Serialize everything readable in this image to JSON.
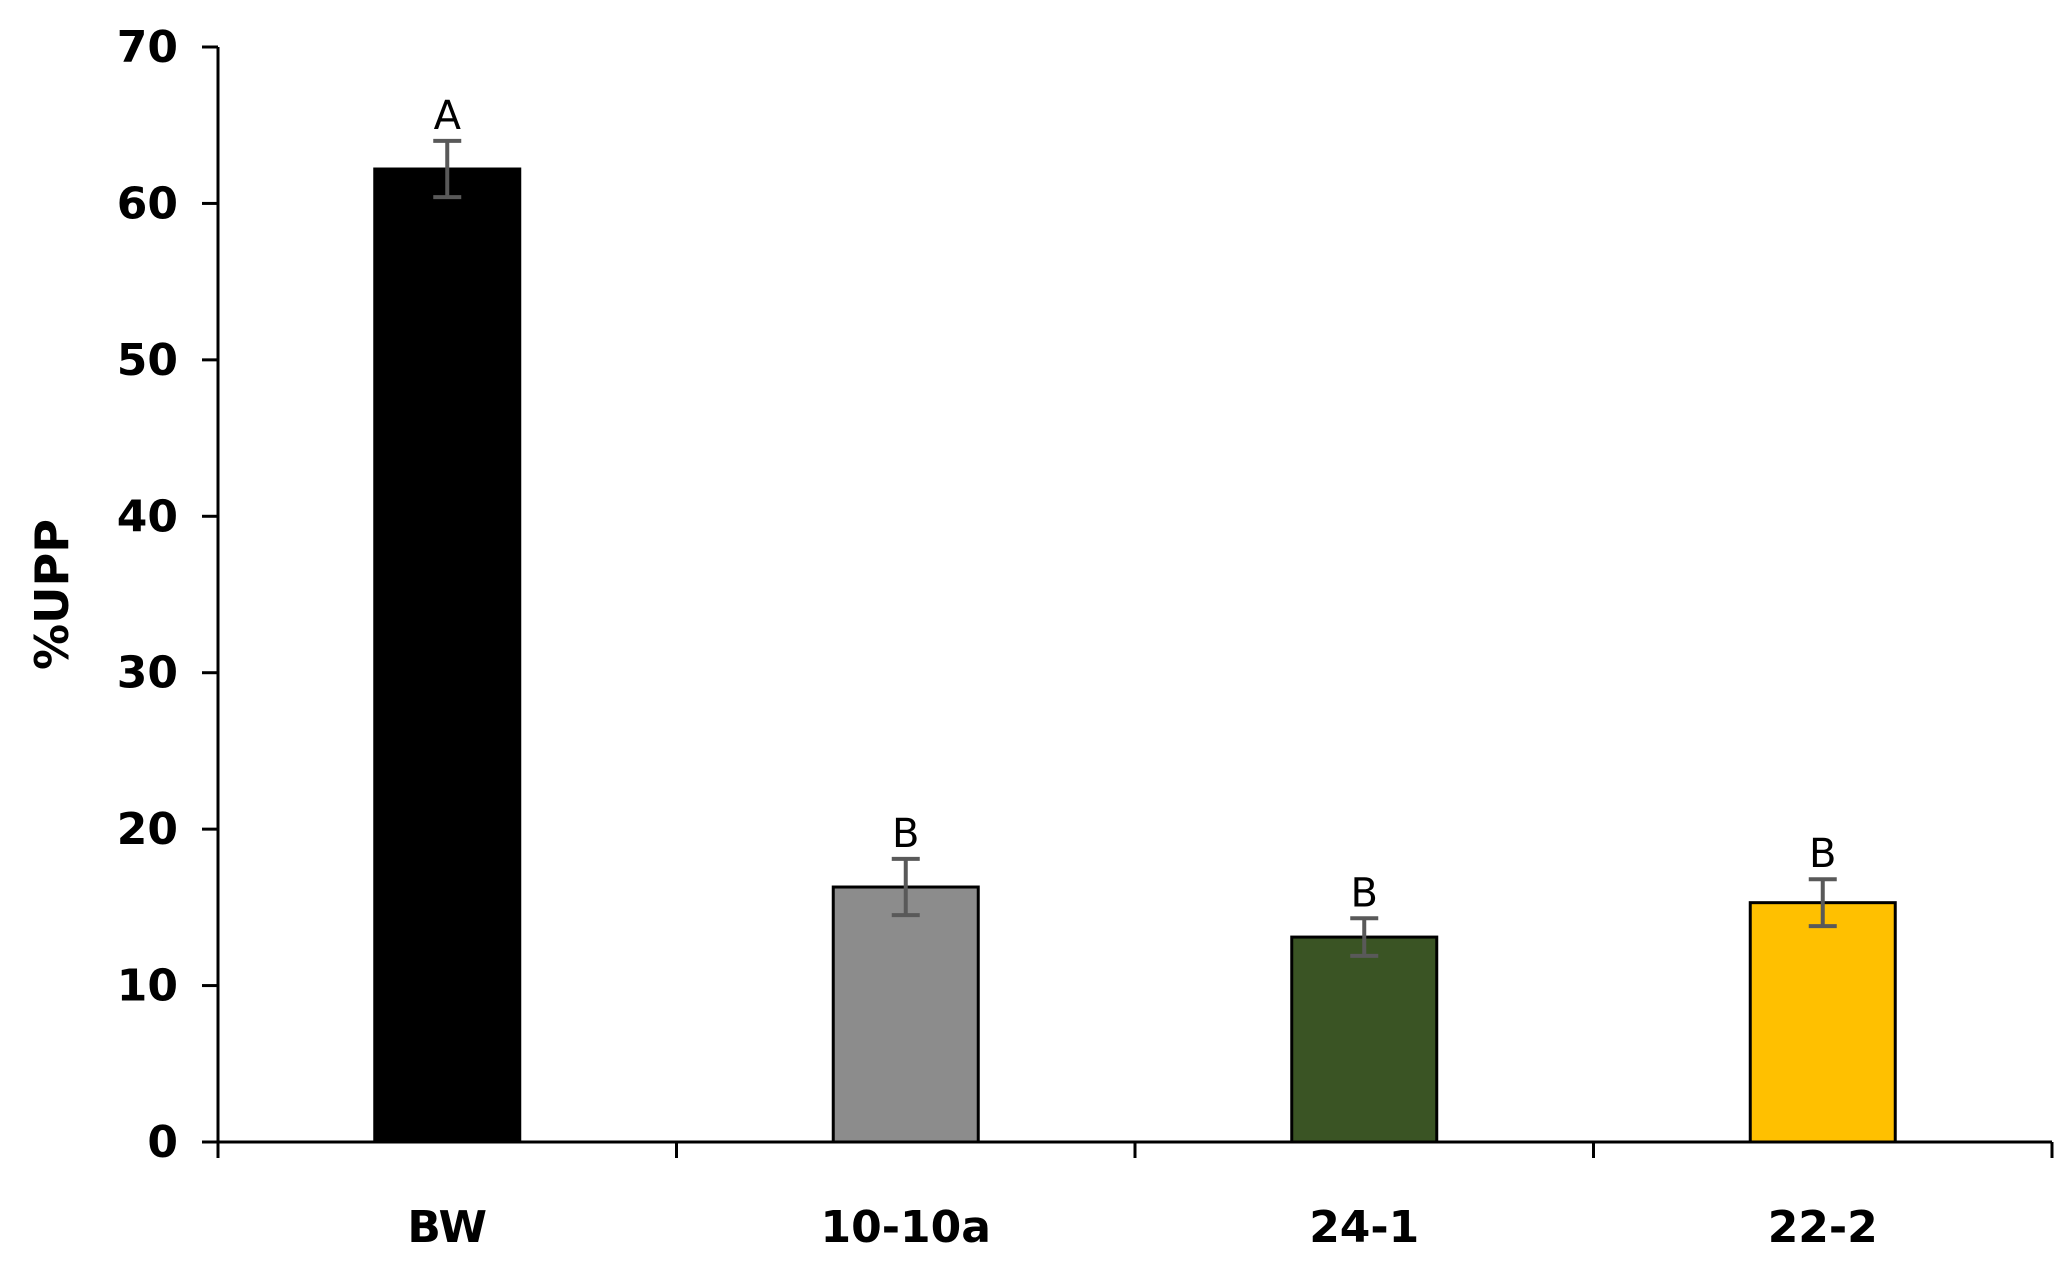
{
  "chart_data": {
    "type": "bar",
    "title": "",
    "xlabel": "",
    "ylabel": "%UPP",
    "ylim": [
      0,
      70
    ],
    "yticks": [
      0,
      10,
      20,
      30,
      40,
      50,
      60,
      70
    ],
    "grid": false,
    "legend": "none",
    "categories": [
      "BW",
      "10-10a",
      "24-1",
      "22-2"
    ],
    "values": [
      62.2,
      16.3,
      13.1,
      15.3
    ],
    "errors": [
      1.8,
      1.8,
      1.2,
      1.5
    ],
    "significance_labels": [
      "A",
      "B",
      "B",
      "B"
    ],
    "bar_colors": [
      "#000000",
      "#8c8c8c",
      "#3a5424",
      "#ffc000"
    ],
    "error_bar_color": "#595959",
    "axis_color": "#000000"
  }
}
